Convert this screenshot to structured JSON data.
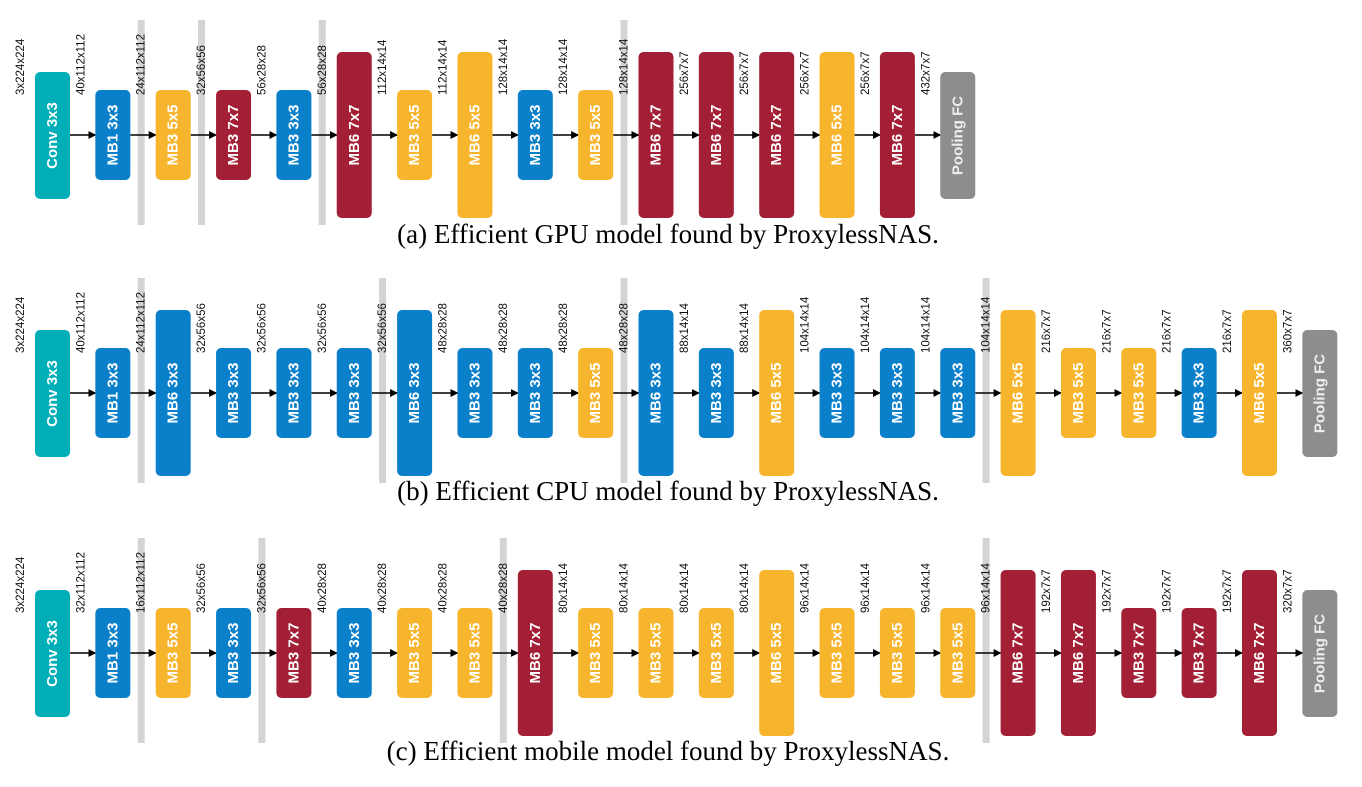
{
  "colors": {
    "conv": "#00aeb7",
    "blue": "#0a80cb",
    "yellow": "#f7b52d",
    "red": "#a31f35",
    "pool": "#8d8d8d",
    "stage_bar": "#d4d4d4",
    "arrow": "#000000"
  },
  "rows": [
    {
      "caption": "(a) Efficient GPU model found by ProxylessNAS.",
      "stage_boundaries": [
        2,
        3,
        5,
        10
      ],
      "blocks": [
        {
          "label": "Conv 3x3",
          "kind": "conv"
        },
        {
          "label": "MB1 3x3",
          "kind": "blue"
        },
        {
          "label": "MB3 5x5",
          "kind": "yellow"
        },
        {
          "label": "MB3 7x7",
          "kind": "red"
        },
        {
          "label": "MB3 3x3",
          "kind": "blue"
        },
        {
          "label": "MB6 7x7",
          "kind": "red"
        },
        {
          "label": "MB3 5x5",
          "kind": "yellow"
        },
        {
          "label": "MB6 5x5",
          "kind": "yellow"
        },
        {
          "label": "MB3 3x3",
          "kind": "blue"
        },
        {
          "label": "MB3 5x5",
          "kind": "yellow"
        },
        {
          "label": "MB6 7x7",
          "kind": "red"
        },
        {
          "label": "MB6 7x7",
          "kind": "red"
        },
        {
          "label": "MB6 7x7",
          "kind": "red"
        },
        {
          "label": "MB6 5x5",
          "kind": "yellow"
        },
        {
          "label": "MB6 7x7",
          "kind": "red"
        },
        {
          "label": "Pooling FC",
          "kind": "pool"
        }
      ],
      "dims": [
        "3x224x224",
        "40x112x112",
        "24x112x112",
        "32x56x56",
        "56x28x28",
        "56x28x28",
        "112x14x14",
        "112x14x14",
        "128x14x14",
        "128x14x14",
        "128x14x14",
        "256x7x7",
        "256x7x7",
        "256x7x7",
        "256x7x7",
        "432x7x7"
      ]
    },
    {
      "caption": "(b) Efficient CPU model found by ProxylessNAS.",
      "stage_boundaries": [
        2,
        6,
        10,
        16
      ],
      "blocks": [
        {
          "label": "Conv 3x3",
          "kind": "conv"
        },
        {
          "label": "MB1 3x3",
          "kind": "blue"
        },
        {
          "label": "MB6 3x3",
          "kind": "blue"
        },
        {
          "label": "MB3 3x3",
          "kind": "blue"
        },
        {
          "label": "MB3 3x3",
          "kind": "blue"
        },
        {
          "label": "MB3 3x3",
          "kind": "blue"
        },
        {
          "label": "MB6 3x3",
          "kind": "blue"
        },
        {
          "label": "MB3 3x3",
          "kind": "blue"
        },
        {
          "label": "MB3 3x3",
          "kind": "blue"
        },
        {
          "label": "MB3 5x5",
          "kind": "yellow"
        },
        {
          "label": "MB6 3x3",
          "kind": "blue"
        },
        {
          "label": "MB3 3x3",
          "kind": "blue"
        },
        {
          "label": "MB6 5x5",
          "kind": "yellow"
        },
        {
          "label": "MB3 3x3",
          "kind": "blue"
        },
        {
          "label": "MB3 3x3",
          "kind": "blue"
        },
        {
          "label": "MB3 3x3",
          "kind": "blue"
        },
        {
          "label": "MB6 5x5",
          "kind": "yellow"
        },
        {
          "label": "MB3 5x5",
          "kind": "yellow"
        },
        {
          "label": "MB3 5x5",
          "kind": "yellow"
        },
        {
          "label": "MB3 3x3",
          "kind": "blue"
        },
        {
          "label": "MB6 5x5",
          "kind": "yellow"
        },
        {
          "label": "Pooling FC",
          "kind": "pool"
        }
      ],
      "dims": [
        "3x224x224",
        "40x112x112",
        "24x112x112",
        "32x56x56",
        "32x56x56",
        "32x56x56",
        "32x56x56",
        "48x28x28",
        "48x28x28",
        "48x28x28",
        "48x28x28",
        "88x14x14",
        "88x14x14",
        "104x14x14",
        "104x14x14",
        "104x14x14",
        "104x14x14",
        "216x7x7",
        "216x7x7",
        "216x7x7",
        "216x7x7",
        "360x7x7"
      ]
    },
    {
      "caption": "(c) Efficient mobile model found by ProxylessNAS.",
      "stage_boundaries": [
        2,
        4,
        8,
        16
      ],
      "blocks": [
        {
          "label": "Conv 3x3",
          "kind": "conv"
        },
        {
          "label": "MB1 3x3",
          "kind": "blue"
        },
        {
          "label": "MB3 5x5",
          "kind": "yellow"
        },
        {
          "label": "MB3 3x3",
          "kind": "blue"
        },
        {
          "label": "MB3 7x7",
          "kind": "red"
        },
        {
          "label": "MB3 3x3",
          "kind": "blue"
        },
        {
          "label": "MB3 5x5",
          "kind": "yellow"
        },
        {
          "label": "MB3 5x5",
          "kind": "yellow"
        },
        {
          "label": "MB6 7x7",
          "kind": "red"
        },
        {
          "label": "MB3 5x5",
          "kind": "yellow"
        },
        {
          "label": "MB3 5x5",
          "kind": "yellow"
        },
        {
          "label": "MB3 5x5",
          "kind": "yellow"
        },
        {
          "label": "MB6 5x5",
          "kind": "yellow"
        },
        {
          "label": "MB3 5x5",
          "kind": "yellow"
        },
        {
          "label": "MB3 5x5",
          "kind": "yellow"
        },
        {
          "label": "MB3 5x5",
          "kind": "yellow"
        },
        {
          "label": "MB6 7x7",
          "kind": "red"
        },
        {
          "label": "MB6 7x7",
          "kind": "red"
        },
        {
          "label": "MB3 7x7",
          "kind": "red"
        },
        {
          "label": "MB3 7x7",
          "kind": "red"
        },
        {
          "label": "MB6 7x7",
          "kind": "red"
        },
        {
          "label": "Pooling FC",
          "kind": "pool"
        }
      ],
      "dims": [
        "3x224x224",
        "32x112x112",
        "16x112x112",
        "32x56x56",
        "32x56x56",
        "40x28x28",
        "40x28x28",
        "40x28x28",
        "40x28x28",
        "80x14x14",
        "80x14x14",
        "80x14x14",
        "80x14x14",
        "96x14x14",
        "96x14x14",
        "96x14x14",
        "96x14x14",
        "192x7x7",
        "192x7x7",
        "192x7x7",
        "192x7x7",
        "320x7x7"
      ]
    }
  ]
}
